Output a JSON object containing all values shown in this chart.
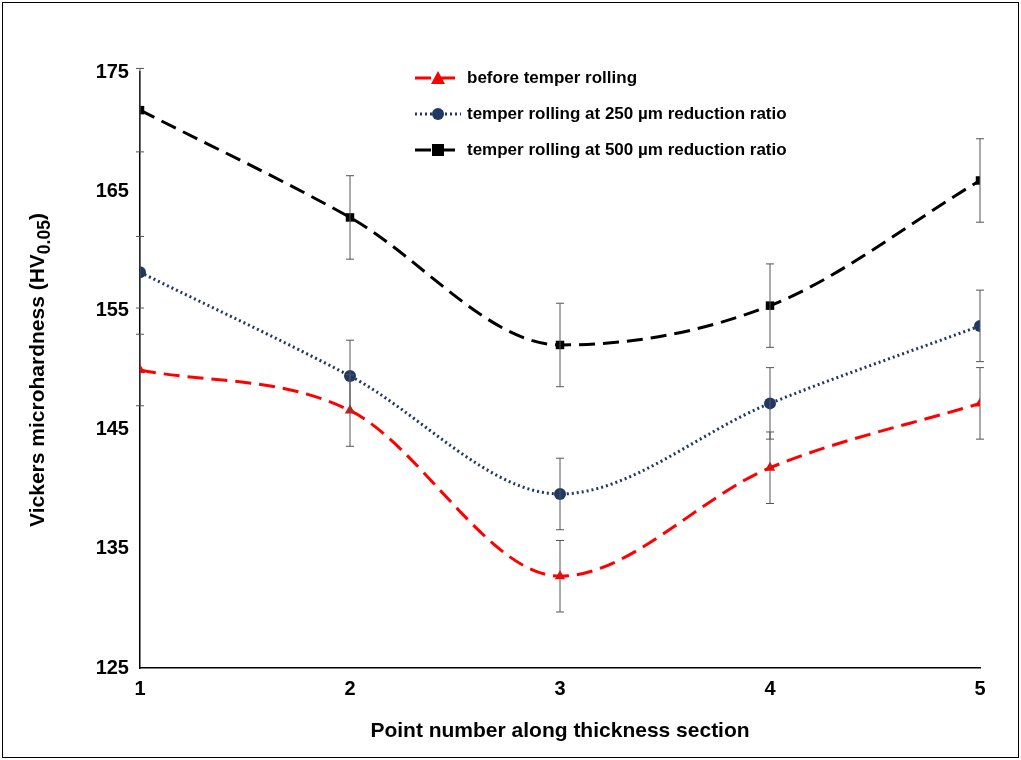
{
  "chart_data": {
    "type": "line",
    "xlabel": "Point number along thickness section",
    "ylabel": "Vickers microhardness (HV$_{0.05}$)",
    "x": [
      1,
      2,
      3,
      4,
      5
    ],
    "xlim": [
      1,
      5
    ],
    "xticks": [
      1,
      2,
      3,
      4,
      5
    ],
    "ylim": [
      125,
      175
    ],
    "yticks": [
      125,
      135,
      145,
      155,
      165,
      175
    ],
    "grid": false,
    "legend": "top right",
    "series": [
      {
        "name": "before temper rolling",
        "color": "#ff0000",
        "marker": "triangle",
        "line_style": "dashed",
        "values": [
          150,
          146.6,
          132.7,
          141.8,
          147.2
        ],
        "errors": [
          3,
          3,
          3,
          3,
          3
        ]
      },
      {
        "name": "temper rolling at 250 µm reduction ratio",
        "color": "#1f3864",
        "marker": "circle",
        "line_style": "dotted",
        "values": [
          158.2,
          149.5,
          139.6,
          147.2,
          153.7
        ],
        "errors": [
          3,
          3,
          3,
          3,
          3
        ]
      },
      {
        "name": "temper rolling at 500 µm reduction ratio",
        "color": "#000000",
        "marker": "square",
        "line_style": "dashed",
        "values": [
          171.8,
          162.8,
          152.1,
          155.4,
          165.9
        ],
        "errors": [
          3.5,
          3.5,
          3.5,
          3.5,
          3.5
        ]
      }
    ]
  }
}
